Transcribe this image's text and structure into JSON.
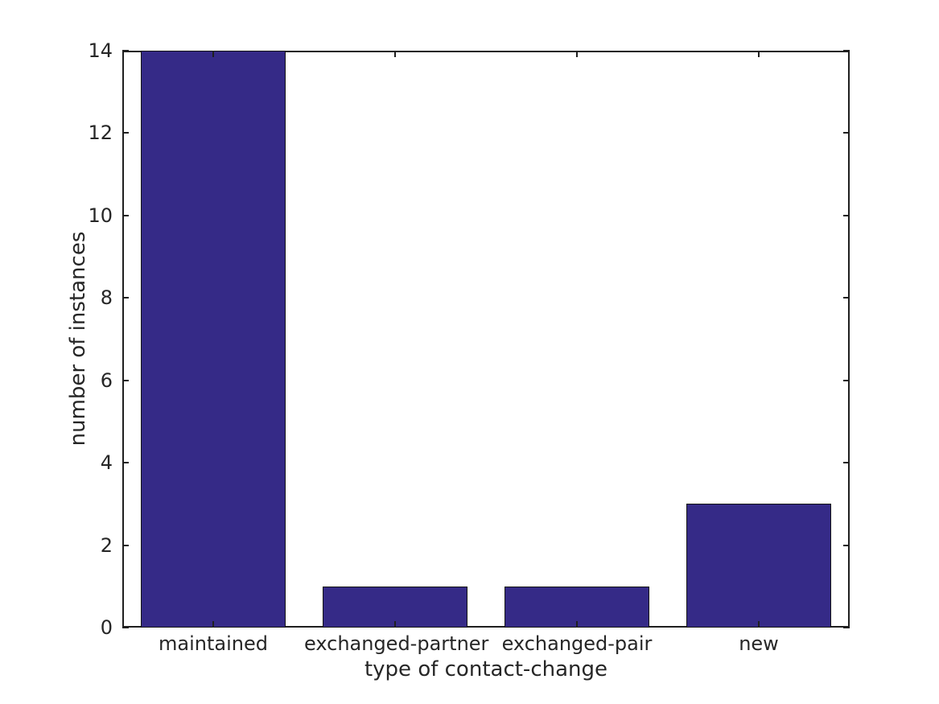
{
  "figure": {
    "background": "#ffffff",
    "bar_color": "#352a87",
    "bar_edge_color": "#141414",
    "axis_color": "#1f1f1f",
    "text_color": "#262626"
  },
  "chart_data": {
    "type": "bar",
    "title": "",
    "xlabel": "type of contact-change",
    "ylabel": "number of instances",
    "categories": [
      "maintained",
      "exchanged-partner",
      "exchanged-pair",
      "new"
    ],
    "values": [
      14,
      1,
      1,
      3
    ],
    "ylim": [
      0,
      14
    ],
    "yticks": [
      0,
      2,
      4,
      6,
      8,
      10,
      12,
      14
    ],
    "grid": false,
    "legend_position": "none",
    "bar_width_fraction": 0.8,
    "box": true,
    "tick_direction": "in"
  }
}
